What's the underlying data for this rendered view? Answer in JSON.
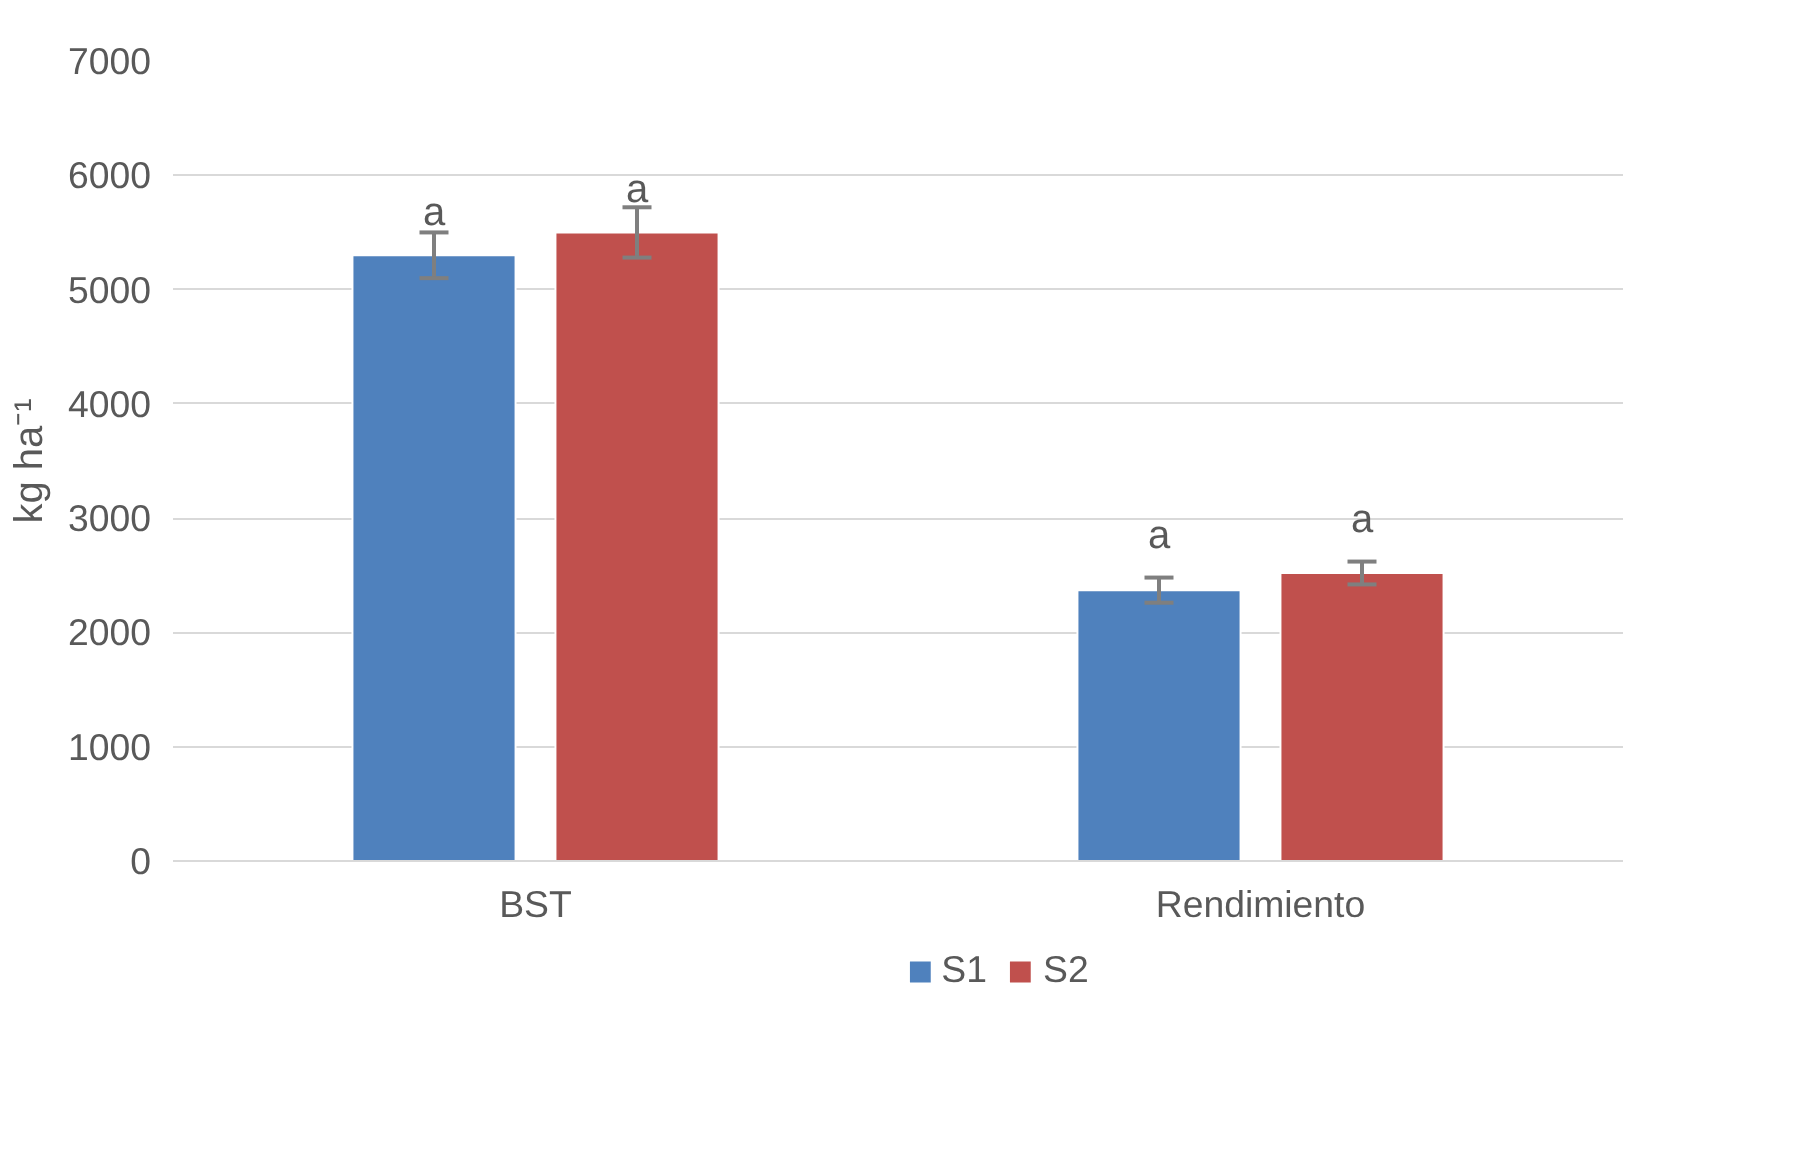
{
  "chart_data": {
    "type": "bar",
    "ylabel": "kg ha⁻¹",
    "categories": [
      "BST",
      "Rendimiento"
    ],
    "series": [
      {
        "name": "S1",
        "color": "#4f81bd",
        "values": [
          5300,
          2370
        ],
        "errors": [
          200,
          110
        ]
      },
      {
        "name": "S2",
        "color": "#c0504d",
        "values": [
          5500,
          2520
        ],
        "errors": [
          220,
          100
        ]
      }
    ],
    "ylim": [
      0,
      7000
    ],
    "yticks": [
      0,
      1000,
      2000,
      3000,
      4000,
      5000,
      6000,
      7000
    ],
    "grid": "y",
    "legend": "bottom",
    "annotations": [
      "a",
      "a",
      "a",
      "a"
    ]
  }
}
